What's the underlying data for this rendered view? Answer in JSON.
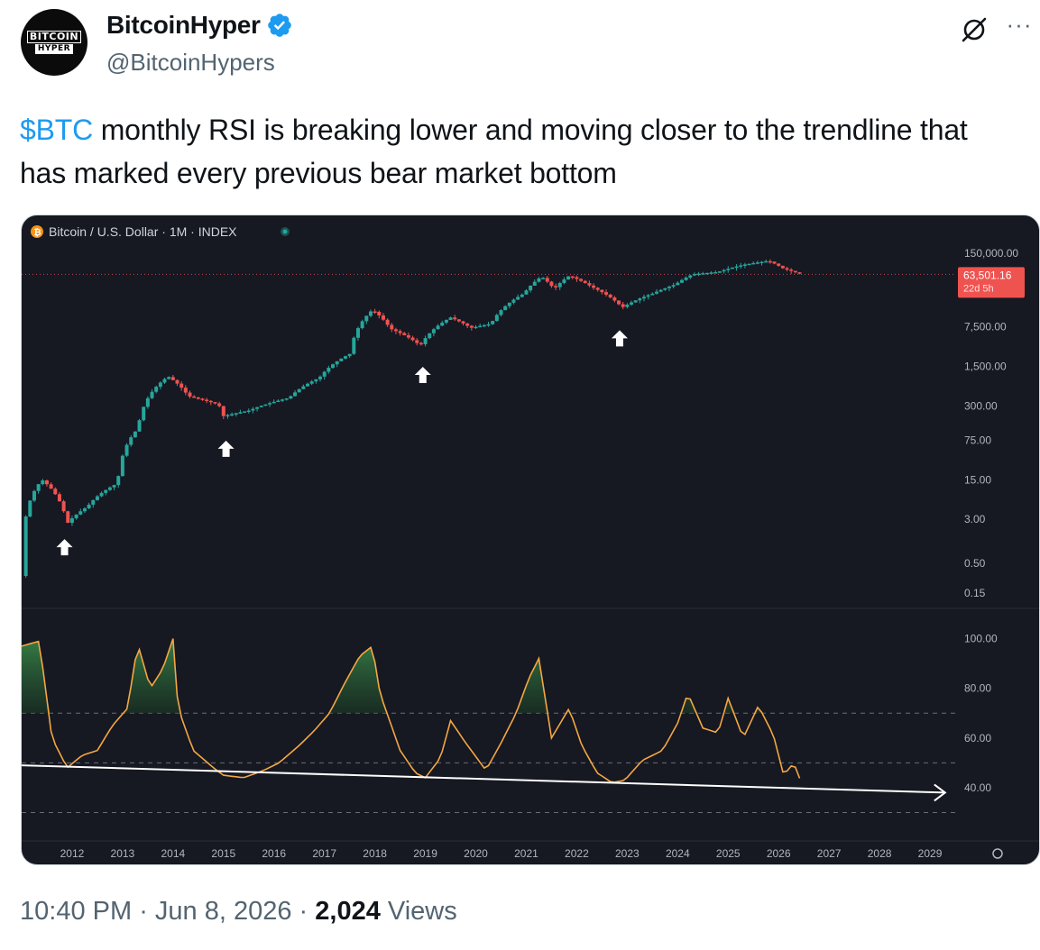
{
  "author": {
    "display_name": "BitcoinHyper",
    "handle": "@BitcoinHypers",
    "avatar_line1": "BITCOIN",
    "avatar_line2": "HYPER",
    "verified": true
  },
  "tweet": {
    "cashtag": "$BTC",
    "text": " monthly RSI is breaking lower and moving closer to the trendline that has marked every previous bear market bottom"
  },
  "chart": {
    "symbol_title": "Bitcoin / U.S. Dollar · 1M · INDEX",
    "price_axis": [
      "150,000.00",
      "7,500.00",
      "1,500.00",
      "300.00",
      "75.00",
      "15.00",
      "3.00",
      "0.50",
      "0.15"
    ],
    "price_tag": "63,501.16",
    "countdown": "22d 5h",
    "rsi_axis": [
      "100.00",
      "80.00",
      "60.00",
      "40.00"
    ],
    "year_labels": [
      "2012",
      "2013",
      "2014",
      "2015",
      "2016",
      "2017",
      "2018",
      "2019",
      "2020",
      "2021",
      "2022",
      "2023",
      "2024",
      "2025",
      "2026",
      "2027",
      "2028",
      "2029"
    ],
    "up_color": "#26a69a",
    "down_color": "#ef5350",
    "rsi_color": "#f5a742"
  },
  "chart_data": {
    "type": "line",
    "subtype": "candlestick-with-rsi",
    "title": "Bitcoin / U.S. Dollar · 1M · INDEX",
    "price_scale": "log",
    "x_range": [
      2011.0,
      2029.5
    ],
    "price_ylim": [
      0.1,
      250000
    ],
    "rsi_ylim": [
      20,
      110
    ],
    "price_path": [
      [
        2011.0,
        0.3
      ],
      [
        2011.4,
        15
      ],
      [
        2011.9,
        2.5
      ],
      [
        2012.3,
        5
      ],
      [
        2012.9,
        13
      ],
      [
        2013.3,
        120
      ],
      [
        2013.9,
        1000
      ],
      [
        2014.3,
        450
      ],
      [
        2014.9,
        320
      ],
      [
        2015.0,
        200
      ],
      [
        2015.5,
        250
      ],
      [
        2016.3,
        420
      ],
      [
        2016.9,
        950
      ],
      [
        2017.5,
        2500
      ],
      [
        2017.95,
        15000
      ],
      [
        2018.3,
        7000
      ],
      [
        2018.9,
        3500
      ],
      [
        2019.5,
        11000
      ],
      [
        2019.9,
        7200
      ],
      [
        2020.3,
        8500
      ],
      [
        2020.95,
        29000
      ],
      [
        2021.3,
        58000
      ],
      [
        2021.55,
        35000
      ],
      [
        2021.85,
        60000
      ],
      [
        2022.3,
        38000
      ],
      [
        2022.9,
        16500
      ],
      [
        2023.5,
        29000
      ],
      [
        2023.95,
        42000
      ],
      [
        2024.3,
        64000
      ],
      [
        2024.8,
        70000
      ],
      [
        2025.3,
        94000
      ],
      [
        2025.8,
        110000
      ],
      [
        2026.1,
        80000
      ],
      [
        2026.45,
        63501.16
      ]
    ],
    "rsi_path": [
      [
        2011.0,
        97
      ],
      [
        2011.35,
        99
      ],
      [
        2011.6,
        60
      ],
      [
        2011.9,
        48
      ],
      [
        2012.2,
        53
      ],
      [
        2012.5,
        55
      ],
      [
        2012.8,
        65
      ],
      [
        2013.1,
        72
      ],
      [
        2013.3,
        98
      ],
      [
        2013.55,
        80
      ],
      [
        2013.8,
        88
      ],
      [
        2014.0,
        100
      ],
      [
        2014.1,
        72
      ],
      [
        2014.4,
        55
      ],
      [
        2014.8,
        48
      ],
      [
        2015.0,
        45
      ],
      [
        2015.4,
        44
      ],
      [
        2015.8,
        47
      ],
      [
        2016.1,
        50
      ],
      [
        2016.5,
        57
      ],
      [
        2016.8,
        63
      ],
      [
        2017.1,
        70
      ],
      [
        2017.4,
        82
      ],
      [
        2017.7,
        93
      ],
      [
        2017.95,
        97
      ],
      [
        2018.1,
        78
      ],
      [
        2018.5,
        55
      ],
      [
        2018.8,
        46
      ],
      [
        2019.0,
        44
      ],
      [
        2019.3,
        52
      ],
      [
        2019.5,
        67
      ],
      [
        2019.8,
        58
      ],
      [
        2020.2,
        47
      ],
      [
        2020.5,
        58
      ],
      [
        2020.8,
        70
      ],
      [
        2021.05,
        84
      ],
      [
        2021.25,
        92
      ],
      [
        2021.5,
        60
      ],
      [
        2021.85,
        72
      ],
      [
        2022.1,
        57
      ],
      [
        2022.4,
        46
      ],
      [
        2022.7,
        42
      ],
      [
        2022.95,
        43
      ],
      [
        2023.3,
        51
      ],
      [
        2023.7,
        55
      ],
      [
        2024.0,
        66
      ],
      [
        2024.2,
        78
      ],
      [
        2024.5,
        64
      ],
      [
        2024.8,
        62
      ],
      [
        2025.0,
        76
      ],
      [
        2025.3,
        60
      ],
      [
        2025.6,
        73
      ],
      [
        2025.9,
        61
      ],
      [
        2026.1,
        45
      ],
      [
        2026.3,
        50
      ],
      [
        2026.45,
        42
      ]
    ],
    "rsi_trendline": [
      [
        2011.0,
        49
      ],
      [
        2029.3,
        38
      ]
    ],
    "rsi_reference_levels": [
      70,
      50,
      30
    ],
    "bottom_markers": [
      2011.85,
      2015.05,
      2018.95,
      2022.85
    ],
    "last_price": 63501.16
  },
  "footer": {
    "time": "10:40 PM",
    "sep1": " · ",
    "date": "Jun 8, 2026",
    "sep2": " · ",
    "views_count": "2,024",
    "views_label": " Views"
  }
}
